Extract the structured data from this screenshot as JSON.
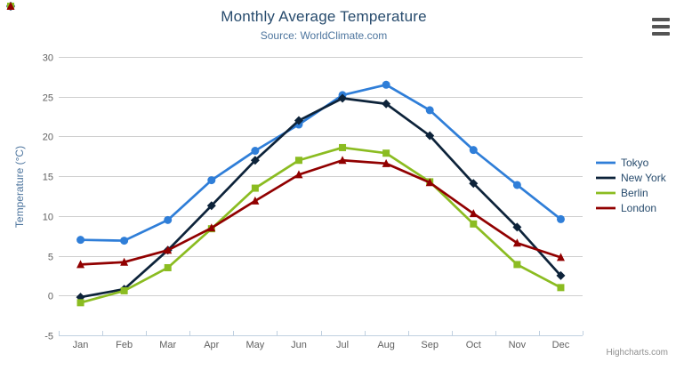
{
  "header": {
    "title": "Monthly Average Temperature",
    "subtitle": "Source: WorldClimate.com"
  },
  "credit": {
    "label": "Highcharts.com"
  },
  "export_menu": {
    "icon": "hamburger-menu-icon"
  },
  "colors": {
    "title": "#274b6d",
    "subtitle": "#4d759e",
    "axis_title": "#4d759e",
    "tick_label": "#606060",
    "grid_line": "#cfcfcf",
    "axis_line": "#c0d0e0",
    "legend_text": "#274b6d",
    "credit_text": "#909090"
  },
  "chart_data": {
    "type": "line",
    "title": "Monthly Average Temperature",
    "subtitle": "Source: WorldClimate.com",
    "categories": [
      "Jan",
      "Feb",
      "Mar",
      "Apr",
      "May",
      "Jun",
      "Jul",
      "Aug",
      "Sep",
      "Oct",
      "Nov",
      "Dec"
    ],
    "xlabel": "",
    "ylabel": "Temperature (°C)",
    "ylim": [
      -5,
      30
    ],
    "ytick_interval": 5,
    "grid": true,
    "legend_position": "right",
    "series": [
      {
        "name": "Tokyo",
        "color": "#2f7ed8",
        "marker": "circle",
        "values": [
          7.0,
          6.9,
          9.5,
          14.5,
          18.2,
          21.5,
          25.2,
          26.5,
          23.3,
          18.3,
          13.9,
          9.6
        ]
      },
      {
        "name": "New York",
        "color": "#0d233a",
        "marker": "diamond",
        "values": [
          -0.2,
          0.8,
          5.7,
          11.3,
          17.0,
          22.0,
          24.8,
          24.1,
          20.1,
          14.1,
          8.6,
          2.5
        ]
      },
      {
        "name": "Berlin",
        "color": "#8bbc21",
        "marker": "square",
        "values": [
          -0.9,
          0.6,
          3.5,
          8.4,
          13.5,
          17.0,
          18.6,
          17.9,
          14.3,
          9.0,
          3.9,
          1.0
        ]
      },
      {
        "name": "London",
        "color": "#910000",
        "marker": "triangle",
        "values": [
          3.9,
          4.2,
          5.7,
          8.5,
          11.9,
          15.2,
          17.0,
          16.6,
          14.2,
          10.3,
          6.6,
          4.8
        ]
      }
    ]
  }
}
